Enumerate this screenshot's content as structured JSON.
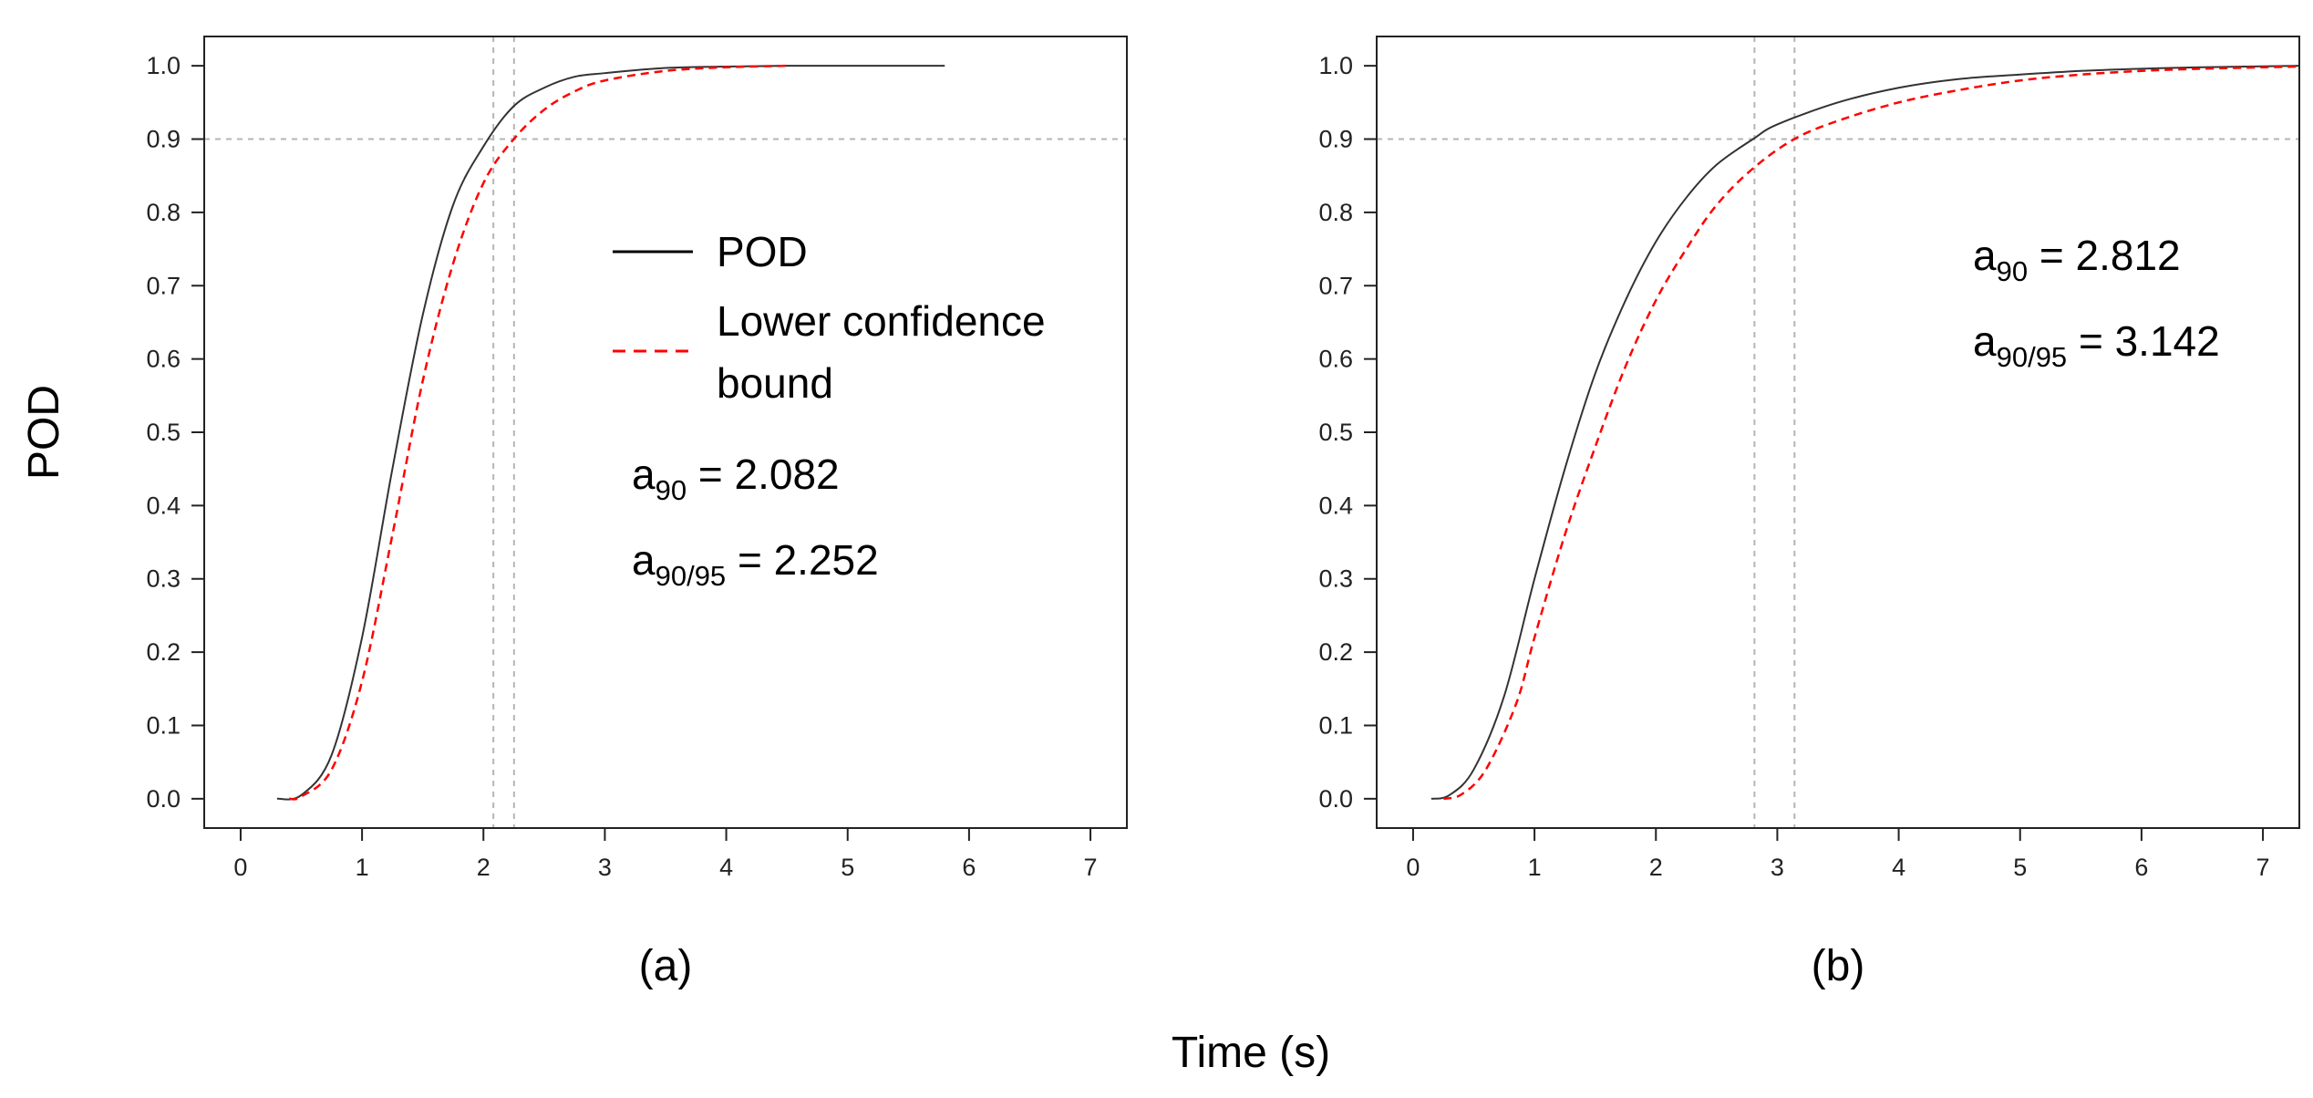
{
  "figure": {
    "ylabel": "POD",
    "xlabel": "Time (s)"
  },
  "legend": {
    "items": [
      {
        "label": "POD",
        "color": "#000000",
        "style": "solid"
      },
      {
        "label_line1": "Lower confidence",
        "label_line2": "bound",
        "color": "#ff0000",
        "style": "dashed"
      }
    ]
  },
  "chart_data": [
    {
      "type": "line",
      "panel_label": "(a)",
      "xlim": [
        -0.3,
        7.3
      ],
      "ylim": [
        -0.04,
        1.04
      ],
      "x_ticks": [
        "0",
        "1",
        "2",
        "3",
        "4",
        "5",
        "6",
        "7"
      ],
      "y_ticks": [
        "0.0",
        "0.1",
        "0.2",
        "0.3",
        "0.4",
        "0.5",
        "0.6",
        "0.7",
        "0.8",
        "0.9",
        "1.0"
      ],
      "reference_lines": {
        "h": 0.9,
        "v": [
          2.082,
          2.252
        ]
      },
      "annotations": {
        "a90": {
          "base": "a",
          "sub": "90",
          "rest": " = 2.082"
        },
        "a9095": {
          "base": "a",
          "sub": "90/95",
          "rest": " = 2.252"
        }
      },
      "series": [
        {
          "name": "POD",
          "color": "#333333",
          "dash": "",
          "x": [
            0.3,
            0.5,
            0.75,
            1.0,
            1.25,
            1.5,
            1.75,
            2.0,
            2.25,
            2.5,
            2.75,
            3.0,
            3.5,
            4.0,
            4.5,
            5.0,
            5.8
          ],
          "y": [
            0.0,
            0.005,
            0.06,
            0.22,
            0.45,
            0.66,
            0.81,
            0.89,
            0.945,
            0.97,
            0.985,
            0.99,
            0.997,
            0.999,
            1.0,
            1.0,
            1.0
          ]
        },
        {
          "name": "Lower confidence bound",
          "color": "#ff0000",
          "dash": "9,6",
          "x": [
            0.4,
            0.5,
            0.75,
            1.0,
            1.25,
            1.5,
            1.75,
            2.0,
            2.25,
            2.5,
            2.75,
            3.0,
            3.5,
            4.0,
            4.5
          ],
          "y": [
            0.0,
            0.003,
            0.04,
            0.16,
            0.36,
            0.57,
            0.73,
            0.84,
            0.9,
            0.94,
            0.965,
            0.98,
            0.993,
            0.998,
            1.0
          ]
        }
      ]
    },
    {
      "type": "line",
      "panel_label": "(b)",
      "xlim": [
        -0.3,
        7.3
      ],
      "ylim": [
        -0.04,
        1.04
      ],
      "x_ticks": [
        "0",
        "1",
        "2",
        "3",
        "4",
        "5",
        "6",
        "7"
      ],
      "y_ticks": [
        "0.0",
        "0.1",
        "0.2",
        "0.3",
        "0.4",
        "0.5",
        "0.6",
        "0.7",
        "0.8",
        "0.9",
        "1.0"
      ],
      "reference_lines": {
        "h": 0.9,
        "v": [
          2.812,
          3.142
        ]
      },
      "annotations": {
        "a90": {
          "base": "a",
          "sub": "90",
          "rest": " = 2.812"
        },
        "a9095": {
          "base": "a",
          "sub": "90/95",
          "rest": " = 3.142"
        }
      },
      "series": [
        {
          "name": "POD",
          "color": "#333333",
          "dash": "",
          "x": [
            0.15,
            0.3,
            0.5,
            0.75,
            1.0,
            1.25,
            1.5,
            1.75,
            2.0,
            2.25,
            2.5,
            2.8,
            3.0,
            3.5,
            4.0,
            4.5,
            5.0,
            5.5,
            6.0,
            6.5,
            7.3
          ],
          "y": [
            0.0,
            0.005,
            0.04,
            0.14,
            0.3,
            0.45,
            0.58,
            0.68,
            0.76,
            0.82,
            0.865,
            0.9,
            0.92,
            0.95,
            0.97,
            0.982,
            0.988,
            0.993,
            0.996,
            0.998,
            1.0
          ]
        },
        {
          "name": "Lower confidence bound",
          "color": "#ff0000",
          "dash": "9,6",
          "x": [
            0.25,
            0.4,
            0.6,
            0.85,
            1.0,
            1.25,
            1.5,
            1.75,
            2.0,
            2.25,
            2.5,
            2.8,
            3.14,
            3.5,
            4.0,
            4.5,
            5.0,
            5.5,
            6.0,
            6.5,
            7.3
          ],
          "y": [
            0.0,
            0.006,
            0.04,
            0.13,
            0.22,
            0.36,
            0.48,
            0.59,
            0.68,
            0.75,
            0.81,
            0.86,
            0.9,
            0.925,
            0.95,
            0.967,
            0.98,
            0.988,
            0.993,
            0.996,
            0.999
          ]
        }
      ]
    }
  ]
}
